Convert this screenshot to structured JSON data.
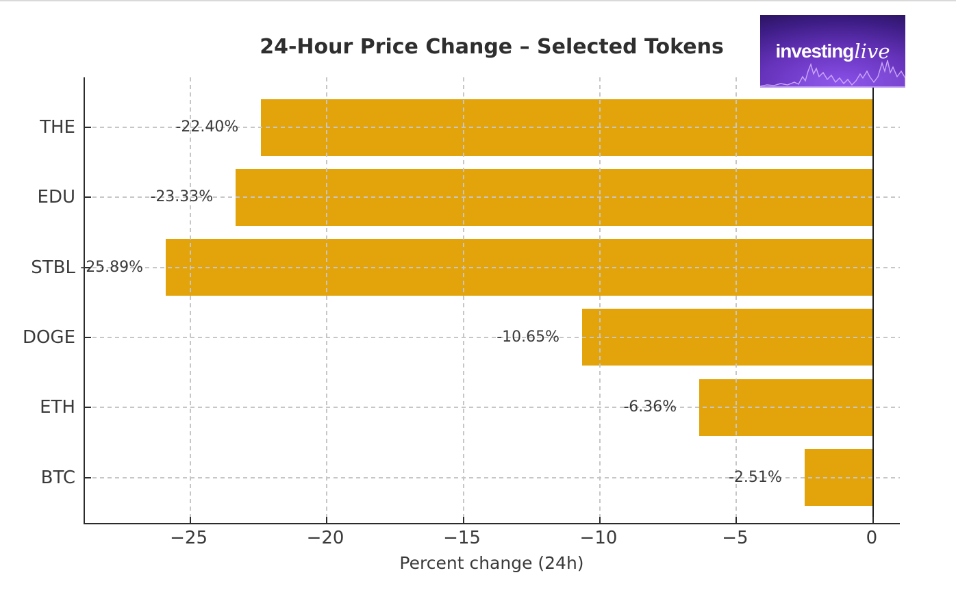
{
  "window": {
    "background": "#ffffff",
    "top_border_color": "#d9d9d9"
  },
  "logo": {
    "text_regular": "investing",
    "text_italic": "live",
    "bg_bright": "#8a50e8",
    "bg_mid": "#6633bb",
    "bg_dark": "#23104f",
    "sparkline_color": "#d4b3ff"
  },
  "chart_data": {
    "type": "bar",
    "orientation": "horizontal",
    "title": "24-Hour Price Change – Selected Tokens",
    "xlabel": "Percent change (24h)",
    "ylabel": "",
    "categories": [
      "THE",
      "EDU",
      "STBL",
      "DOGE",
      "ETH",
      "BTC"
    ],
    "values": [
      -22.4,
      -23.33,
      -25.89,
      -10.65,
      -6.36,
      -2.51
    ],
    "bar_labels": [
      "-22.40%",
      "-23.33%",
      "-25.89%",
      "-10.65%",
      "-6.36%",
      "-2.51%"
    ],
    "x_ticks": [
      -25,
      -20,
      -15,
      -10,
      -5,
      0
    ],
    "x_tick_labels": [
      "−25",
      "−20",
      "−15",
      "−10",
      "−5",
      "0"
    ],
    "xlim": [
      -28.85,
      1.03
    ],
    "grid": true,
    "grid_style": "dashed",
    "legend": "none",
    "bar_color": "#E2A30B",
    "grid_color": "#c6c6c6",
    "spine_color": "#2b2b2b",
    "zero_line_color": "#1c1c1c",
    "text_color": "#3a3a3a",
    "title_color": "#2e2e2e"
  }
}
